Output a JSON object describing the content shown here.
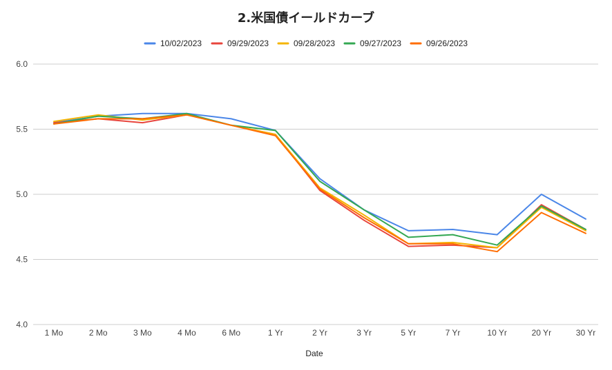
{
  "chart_data": {
    "type": "line",
    "title": "2.米国債イールドカーブ",
    "xlabel": "Date",
    "ylabel": "",
    "ylim": [
      4.0,
      6.0
    ],
    "yticks": [
      "4.0",
      "4.5",
      "5.0",
      "5.5",
      "6.0"
    ],
    "ytick_values": [
      4.0,
      4.5,
      5.0,
      5.5,
      6.0
    ],
    "grid": true,
    "legend_position": "top",
    "categories": [
      "1 Mo",
      "2 Mo",
      "3 Mo",
      "4 Mo",
      "6 Mo",
      "1 Yr",
      "2 Yr",
      "3 Yr",
      "5 Yr",
      "7 Yr",
      "10 Yr",
      "20 Yr",
      "30 Yr"
    ],
    "series": [
      {
        "name": "10/02/2023",
        "color": "#4a86e8",
        "values": [
          5.55,
          5.6,
          5.62,
          5.62,
          5.58,
          5.49,
          5.12,
          4.88,
          4.72,
          4.73,
          4.69,
          5.0,
          4.81
        ]
      },
      {
        "name": "09/29/2023",
        "color": "#e8453c",
        "values": [
          5.55,
          5.58,
          5.55,
          5.61,
          5.53,
          5.46,
          5.03,
          4.8,
          4.6,
          4.61,
          4.59,
          4.92,
          4.73
        ]
      },
      {
        "name": "09/28/2023",
        "color": "#f4b400",
        "values": [
          5.56,
          5.61,
          5.57,
          5.61,
          5.53,
          5.46,
          5.05,
          4.84,
          4.62,
          4.63,
          4.59,
          4.9,
          4.72
        ]
      },
      {
        "name": "09/27/2023",
        "color": "#34a853",
        "values": [
          5.54,
          5.6,
          5.58,
          5.62,
          5.53,
          5.49,
          5.1,
          4.88,
          4.67,
          4.69,
          4.61,
          4.91,
          4.73
        ]
      },
      {
        "name": "09/26/2023",
        "color": "#ff6d01",
        "values": [
          5.54,
          5.58,
          5.58,
          5.61,
          5.53,
          5.45,
          5.04,
          4.82,
          4.62,
          4.62,
          4.56,
          4.86,
          4.7
        ]
      }
    ]
  }
}
